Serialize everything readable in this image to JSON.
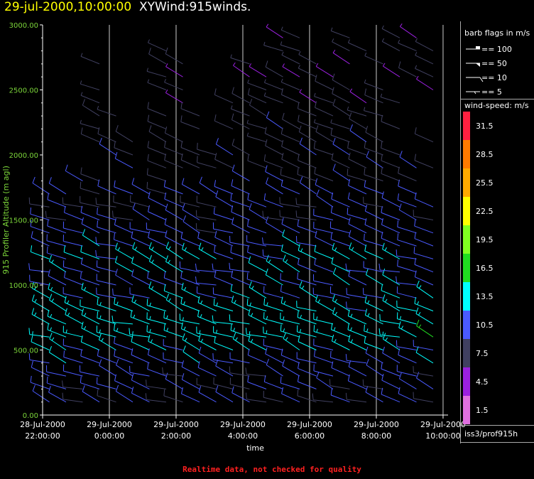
{
  "header": {
    "date_time": "29-jul-2000,10:00:00",
    "title": "XYWind:915winds."
  },
  "footer": {
    "note": "Realtime data, not checked for quality"
  },
  "legend": {
    "barb_title": "barb flags in m/s",
    "barbs": [
      {
        "label": "== 100"
      },
      {
        "label": "== 50"
      },
      {
        "label": "== 10"
      },
      {
        "label": "== 5"
      }
    ],
    "speed_title": "wind-speed: m/s",
    "speed_scale": [
      {
        "label": "31.5",
        "color": "#ff2040"
      },
      {
        "label": "28.5",
        "color": "#ff7a00"
      },
      {
        "label": "25.5",
        "color": "#ffaa00"
      },
      {
        "label": "22.5",
        "color": "#ffff00"
      },
      {
        "label": "19.5",
        "color": "#80ff20"
      },
      {
        "label": "16.5",
        "color": "#20dd20"
      },
      {
        "label": "13.5",
        "color": "#00ffff"
      },
      {
        "label": "10.5",
        "color": "#4a5aff"
      },
      {
        "label": "7.5",
        "color": "#404060"
      },
      {
        "label": "4.5",
        "color": "#9b20e0"
      },
      {
        "label": "1.5",
        "color": "#e070e0"
      }
    ],
    "station": "iss3/prof915h"
  },
  "chart_data": {
    "type": "scatter",
    "plot_kind": "wind barbs",
    "ylabel": "915 Profiler Altitude (m agl)",
    "xlabel": "time",
    "ylim": [
      0,
      3000
    ],
    "yticks": [
      "0.00",
      "500.00",
      "1000.00",
      "1500.00",
      "2000.00",
      "2500.00",
      "3000.00"
    ],
    "xlim_hours": [
      -2,
      10.15
    ],
    "xticks": [
      {
        "line1": "28-Jul-2000",
        "line2": "22:00:00",
        "hour": -2
      },
      {
        "line1": "29-Jul-2000",
        "line2": "0:00:00",
        "hour": 0
      },
      {
        "line1": "29-Jul-2000",
        "line2": "2:00:00",
        "hour": 2
      },
      {
        "line1": "29-Jul-2000",
        "line2": "4:00:00",
        "hour": 4
      },
      {
        "line1": "29-Jul-2000",
        "line2": "6:00:00",
        "hour": 6
      },
      {
        "line1": "29-Jul-2000",
        "line2": "8:00:00",
        "hour": 8
      },
      {
        "line1": "29-Jul-2000",
        "line2": "10:00:00",
        "hour": 10
      }
    ],
    "vertical_gridlines_hours": [
      0,
      2,
      4,
      6,
      8,
      10
    ],
    "profile_times_hours": [
      -1.5,
      -1.0,
      -0.5,
      0.0,
      0.5,
      1.0,
      1.5,
      2.0,
      2.5,
      3.0,
      3.5,
      4.0,
      4.5,
      5.0,
      5.5,
      6.0,
      6.5,
      7.0,
      7.5,
      8.0,
      8.5,
      9.0,
      9.5,
      10.0
    ],
    "range_gate_spacing_m": 100,
    "lowest_gate_m": 100,
    "typical_direction_deg": 290,
    "max_height_by_time_m": [
      1700,
      1700,
      1800,
      2700,
      2400,
      2200,
      1900,
      2800,
      3000,
      2300,
      2100,
      2400,
      3000,
      2900,
      3000,
      2900,
      2700,
      2600,
      2900,
      2800,
      2700,
      2900,
      3000,
      2800
    ],
    "speed_profile": [
      {
        "height_m": 100,
        "speed_ms": 9
      },
      {
        "height_m": 300,
        "speed_ms": 10
      },
      {
        "height_m": 500,
        "speed_ms": 12
      },
      {
        "height_m": 600,
        "speed_ms": 14
      },
      {
        "height_m": 800,
        "speed_ms": 13
      },
      {
        "height_m": 1000,
        "speed_ms": 11
      },
      {
        "height_m": 1200,
        "speed_ms": 12
      },
      {
        "height_m": 1400,
        "speed_ms": 10
      },
      {
        "height_m": 1700,
        "speed_ms": 9
      },
      {
        "height_m": 2000,
        "speed_ms": 8
      },
      {
        "height_m": 2500,
        "speed_ms": 7
      },
      {
        "height_m": 3000,
        "speed_ms": 6
      }
    ]
  }
}
